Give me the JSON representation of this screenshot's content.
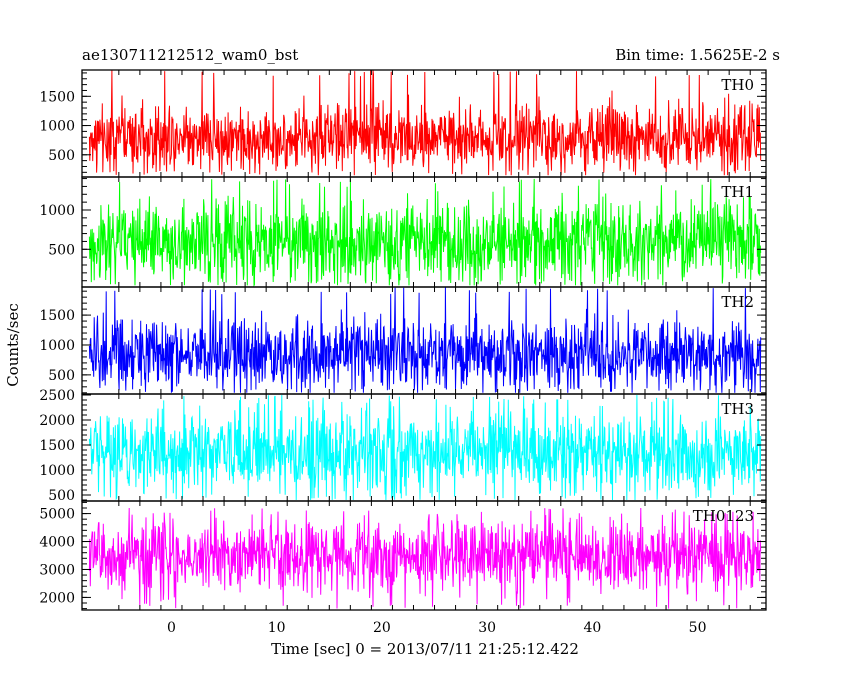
{
  "header": {
    "left_title": "ae130711212512_wam0_bst",
    "right_title": "Bin time: 1.5625E-2 s"
  },
  "xlabel": "Time [sec] 0 = 2013/07/11 21:25:12.422",
  "ylabel": "Counts/sec",
  "chart_data": {
    "type": "line",
    "title": "ae130711212512_wam0_bst",
    "subtitle": "Bin time: 1.5625E-2 s",
    "xlabel": "Time [sec] 0 = 2013/07/11 21:25:12.422",
    "ylabel": "Counts/sec",
    "xlim": [
      -8.5,
      56.5
    ],
    "x_ticks": [
      0,
      10,
      20,
      30,
      40,
      50
    ],
    "x_range_data": [
      -7.8,
      56
    ],
    "bin_time": 0.015625,
    "panels": [
      {
        "name": "TH0",
        "color": "#ff0000",
        "ylim": [
          120,
          1950
        ],
        "yticks": [
          500,
          1000,
          1500
        ],
        "series": [
          {
            "name": "TH0",
            "center": 800,
            "spread": 280,
            "min": 150,
            "max": 1950
          }
        ]
      },
      {
        "name": "TH1",
        "color": "#00ff00",
        "ylim": [
          20,
          1420
        ],
        "yticks": [
          500,
          1000
        ],
        "series": [
          {
            "name": "TH1",
            "center": 600,
            "spread": 260,
            "min": 40,
            "max": 1400
          }
        ]
      },
      {
        "name": "TH2",
        "color": "#0000ff",
        "ylim": [
          180,
          1970
        ],
        "yticks": [
          500,
          1000,
          1500
        ],
        "series": [
          {
            "name": "TH2",
            "center": 850,
            "spread": 300,
            "min": 200,
            "max": 1970
          }
        ]
      },
      {
        "name": "TH3",
        "color": "#00ffff",
        "ylim": [
          380,
          2520
        ],
        "yticks": [
          500,
          1000,
          1500,
          2000,
          2500
        ],
        "series": [
          {
            "name": "TH3",
            "center": 1350,
            "spread": 420,
            "min": 400,
            "max": 2500
          }
        ]
      },
      {
        "name": "TH0123",
        "color": "#ff00ff",
        "ylim": [
          1550,
          5450
        ],
        "yticks": [
          2000,
          3000,
          4000,
          5000
        ],
        "series": [
          {
            "name": "TH0123",
            "center": 3500,
            "spread": 650,
            "min": 1600,
            "max": 5200
          }
        ]
      }
    ]
  }
}
